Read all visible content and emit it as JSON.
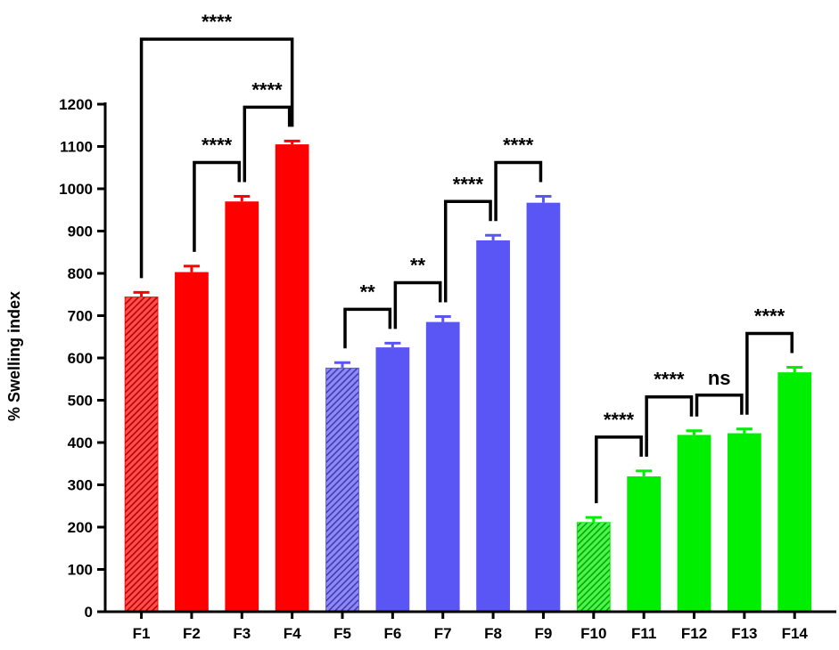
{
  "chart_data": {
    "type": "bar",
    "ylabel": "% Swelling index",
    "xlabel": "",
    "ylim": [
      0,
      1200
    ],
    "yticks": [
      0,
      100,
      200,
      300,
      400,
      500,
      600,
      700,
      800,
      900,
      1000,
      1100,
      1200
    ],
    "grid": false,
    "categories": [
      "F1",
      "F2",
      "F3",
      "F4",
      "F5",
      "F6",
      "F7",
      "F8",
      "F9",
      "F10",
      "F11",
      "F12",
      "F13",
      "F14"
    ],
    "values": [
      745,
      803,
      970,
      1105,
      577,
      625,
      685,
      878,
      967,
      212,
      320,
      418,
      422,
      566
    ],
    "errors": [
      10,
      14,
      12,
      8,
      12,
      10,
      13,
      12,
      15,
      11,
      13,
      10,
      10,
      12
    ],
    "colors": [
      "#ff0000",
      "#ff0000",
      "#ff0000",
      "#ff0000",
      "#5a55f5",
      "#5a55f5",
      "#5a55f5",
      "#5a55f5",
      "#5a55f5",
      "#00ee00",
      "#00ee00",
      "#00ee00",
      "#00ee00",
      "#00ee00"
    ],
    "hatched": [
      "F1",
      "F5",
      "F10"
    ],
    "significance": [
      {
        "from": "F1",
        "to": "F4",
        "label": "****"
      },
      {
        "from": "F2",
        "to": "F3",
        "label": "****"
      },
      {
        "from": "F3",
        "to": "F4",
        "label": "****"
      },
      {
        "from": "F5",
        "to": "F6",
        "label": "**"
      },
      {
        "from": "F6",
        "to": "F7",
        "label": "**"
      },
      {
        "from": "F7",
        "to": "F8",
        "label": "****"
      },
      {
        "from": "F8",
        "to": "F9",
        "label": "****"
      },
      {
        "from": "F10",
        "to": "F11",
        "label": "****"
      },
      {
        "from": "F11",
        "to": "F12",
        "label": "****"
      },
      {
        "from": "F12",
        "to": "F13",
        "label": "ns"
      },
      {
        "from": "F13",
        "to": "F14",
        "label": "****"
      }
    ]
  }
}
